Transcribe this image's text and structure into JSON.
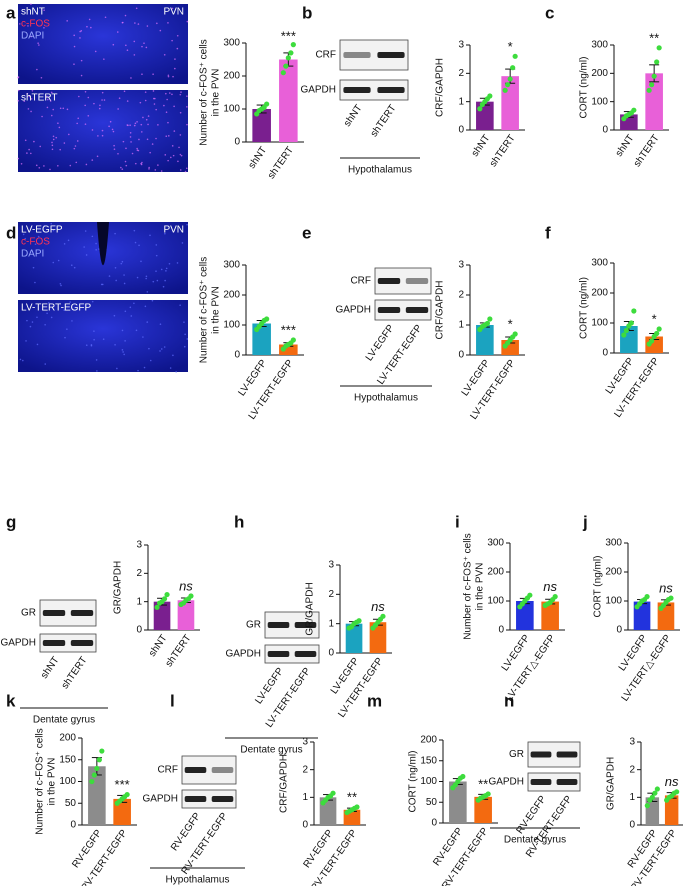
{
  "chart_data": [
    {
      "type": "bar",
      "panel": "a",
      "ylabel": [
        "Number of  c-FOS⁺ cells",
        "in the PVN"
      ],
      "categories": [
        "shNT",
        "shTERT"
      ],
      "values": [
        100,
        250
      ],
      "errors": [
        12,
        20
      ],
      "points": [
        [
          85,
          95,
          100,
          105,
          115
        ],
        [
          210,
          230,
          255,
          270,
          295
        ]
      ],
      "colors": [
        "#7a1f8f",
        "#e860d8"
      ],
      "ylim": [
        0,
        300
      ],
      "yticks": [
        0,
        100,
        200,
        300
      ],
      "annotation": "***"
    },
    {
      "type": "bar",
      "panel": "b",
      "ylabel": [
        "CRF/GAPDH"
      ],
      "categories": [
        "shNT",
        "shTERT"
      ],
      "values": [
        1,
        1.9
      ],
      "errors": [
        0.12,
        0.25
      ],
      "points": [
        [
          0.75,
          0.9,
          1.0,
          1.1,
          1.2
        ],
        [
          1.4,
          1.6,
          1.8,
          2.2,
          2.6
        ]
      ],
      "colors": [
        "#7a1f8f",
        "#e860d8"
      ],
      "ylim": [
        0,
        3
      ],
      "yticks": [
        0,
        1,
        2,
        3
      ],
      "annotation": "*"
    },
    {
      "type": "bar",
      "panel": "c",
      "ylabel": [
        "CORT (ng/ml)"
      ],
      "categories": [
        "shNT",
        "shTERT"
      ],
      "values": [
        55,
        200
      ],
      "errors": [
        10,
        30
      ],
      "points": [
        [
          40,
          50,
          55,
          60,
          70
        ],
        [
          140,
          160,
          190,
          240,
          290
        ]
      ],
      "colors": [
        "#7a1f8f",
        "#e860d8"
      ],
      "ylim": [
        0,
        300
      ],
      "yticks": [
        0,
        100,
        200,
        300
      ],
      "annotation": "**"
    },
    {
      "type": "bar",
      "panel": "d",
      "ylabel": [
        "Number of  c-FOS⁺ cells",
        "in the PVN"
      ],
      "categories": [
        "LV-EGFP",
        "LV-TERT-EGFP"
      ],
      "values": [
        105,
        35
      ],
      "errors": [
        10,
        6
      ],
      "points": [
        [
          85,
          95,
          105,
          115,
          120
        ],
        [
          20,
          30,
          35,
          40,
          50
        ]
      ],
      "colors": [
        "#1ba3c0",
        "#f36a10"
      ],
      "ylim": [
        0,
        300
      ],
      "yticks": [
        0,
        100,
        200,
        300
      ],
      "annotation": "***"
    },
    {
      "type": "bar",
      "panel": "e",
      "ylabel": [
        "CRF/GAPDH"
      ],
      "categories": [
        "LV-EGFP",
        "LV-TERT-EGFP"
      ],
      "values": [
        1,
        0.5
      ],
      "errors": [
        0.07,
        0.1
      ],
      "points": [
        [
          0.85,
          0.95,
          1.0,
          1.05,
          1.2
        ],
        [
          0.3,
          0.4,
          0.5,
          0.6,
          0.7
        ]
      ],
      "colors": [
        "#1ba3c0",
        "#f36a10"
      ],
      "ylim": [
        0,
        3
      ],
      "yticks": [
        0,
        1,
        2,
        3
      ],
      "annotation": "*"
    },
    {
      "type": "bar",
      "panel": "f",
      "ylabel": [
        "CORT (ng/ml)"
      ],
      "categories": [
        "LV-EGFP",
        "LV-TERT-EGFP"
      ],
      "values": [
        90,
        55
      ],
      "errors": [
        15,
        10
      ],
      "points": [
        [
          60,
          75,
          90,
          100,
          140
        ],
        [
          30,
          40,
          55,
          65,
          80
        ]
      ],
      "colors": [
        "#1ba3c0",
        "#f36a10"
      ],
      "ylim": [
        0,
        300
      ],
      "yticks": [
        0,
        100,
        200,
        300
      ],
      "annotation": "*"
    },
    {
      "type": "bar",
      "panel": "g",
      "ylabel": [
        "GR/GAPDH"
      ],
      "categories": [
        "shNT",
        "shTERT"
      ],
      "values": [
        1,
        1.05
      ],
      "errors": [
        0.12,
        0.08
      ],
      "points": [
        [
          0.8,
          0.95,
          1.0,
          1.1,
          1.25
        ],
        [
          0.9,
          0.95,
          1.05,
          1.1,
          1.2
        ]
      ],
      "colors": [
        "#7a1f8f",
        "#e860d8"
      ],
      "ylim": [
        0,
        3
      ],
      "yticks": [
        0,
        1,
        2,
        3
      ],
      "annotation": "ns"
    },
    {
      "type": "bar",
      "panel": "h",
      "ylabel": [
        "GR/GAPDH"
      ],
      "categories": [
        "LV-EGFP",
        "LV-TERT-EGFP"
      ],
      "values": [
        1,
        1.05
      ],
      "errors": [
        0.07,
        0.1
      ],
      "points": [
        [
          0.85,
          0.9,
          1.0,
          1.05,
          1.1
        ],
        [
          0.85,
          0.95,
          1.05,
          1.15,
          1.25
        ]
      ],
      "colors": [
        "#1ba3c0",
        "#f36a10"
      ],
      "ylim": [
        0,
        3
      ],
      "yticks": [
        0,
        1,
        2,
        3
      ],
      "annotation": "ns"
    },
    {
      "type": "bar",
      "panel": "i",
      "ylabel": [
        "Number of  c-FOS⁺ cells",
        "in the PVN"
      ],
      "categories": [
        "LV-EGFP",
        "LV-TERT△-EGFP"
      ],
      "values": [
        100,
        98
      ],
      "errors": [
        9,
        8
      ],
      "points": [
        [
          80,
          90,
          100,
          110,
          120
        ],
        [
          85,
          90,
          95,
          105,
          115
        ]
      ],
      "colors": [
        "#2233dd",
        "#f36a10"
      ],
      "ylim": [
        0,
        300
      ],
      "yticks": [
        0,
        100,
        200,
        300
      ],
      "annotation": "ns"
    },
    {
      "type": "bar",
      "panel": "j",
      "ylabel": [
        "CORT (ng/ml)"
      ],
      "categories": [
        "LV-EGFP",
        "LV-TERT△-EGFP"
      ],
      "values": [
        98,
        95
      ],
      "errors": [
        7,
        9
      ],
      "points": [
        [
          80,
          90,
          100,
          105,
          115
        ],
        [
          75,
          85,
          95,
          105,
          110
        ]
      ],
      "colors": [
        "#2233dd",
        "#f36a10"
      ],
      "ylim": [
        0,
        300
      ],
      "yticks": [
        0,
        100,
        200,
        300
      ],
      "annotation": "ns"
    },
    {
      "type": "bar",
      "panel": "k",
      "ylabel": [
        "Number of c-FOS⁺ cells",
        "in the PVN"
      ],
      "categories": [
        "RV-EGFP",
        "RV-TERT-EGFP"
      ],
      "values": [
        135,
        60
      ],
      "errors": [
        20,
        8
      ],
      "points": [
        [
          100,
          115,
          130,
          150,
          170
        ],
        [
          50,
          55,
          60,
          65,
          70
        ]
      ],
      "colors": [
        "#8c8c8c",
        "#f36a10"
      ],
      "ylim": [
        0,
        200
      ],
      "yticks": [
        0,
        50,
        100,
        150,
        200
      ],
      "annotation": "***"
    },
    {
      "type": "bar",
      "panel": "l",
      "ylabel": [
        "CRF/GAPDH"
      ],
      "categories": [
        "RV-EGFP",
        "RV-TERT-EGFP"
      ],
      "values": [
        1,
        0.55
      ],
      "errors": [
        0.1,
        0.06
      ],
      "points": [
        [
          0.8,
          0.9,
          1.0,
          1.05,
          1.15
        ],
        [
          0.45,
          0.5,
          0.55,
          0.6,
          0.65
        ]
      ],
      "colors": [
        "#8c8c8c",
        "#f36a10"
      ],
      "ylim": [
        0,
        3
      ],
      "yticks": [
        0,
        1,
        2,
        3
      ],
      "annotation": "**"
    },
    {
      "type": "bar",
      "panel": "m",
      "ylabel": [
        "CORT (ng/ml)"
      ],
      "categories": [
        "RV-EGFP",
        "RV-TERT-EGFP"
      ],
      "values": [
        100,
        63
      ],
      "errors": [
        7,
        6
      ],
      "points": [
        [
          85,
          92,
          100,
          108,
          112
        ],
        [
          55,
          60,
          63,
          66,
          70
        ]
      ],
      "colors": [
        "#8c8c8c",
        "#f36a10"
      ],
      "ylim": [
        0,
        200
      ],
      "yticks": [
        0,
        50,
        100,
        150,
        200
      ],
      "annotation": "**"
    },
    {
      "type": "bar",
      "panel": "n",
      "ylabel": [
        "GR/GAPDH"
      ],
      "categories": [
        "RV-EGFP",
        "RV-TERT-EGFP"
      ],
      "values": [
        1,
        1.07
      ],
      "errors": [
        0.15,
        0.1
      ],
      "points": [
        [
          0.7,
          0.9,
          1.0,
          1.15,
          1.3
        ],
        [
          0.9,
          1.0,
          1.05,
          1.15,
          1.2
        ]
      ],
      "colors": [
        "#8c8c8c",
        "#f36a10"
      ],
      "ylim": [
        0,
        3
      ],
      "yticks": [
        0,
        1,
        2,
        3
      ],
      "annotation": "ns"
    }
  ],
  "images": [
    {
      "title": "shNT",
      "stains": [
        "c-FOS",
        "DAPI"
      ],
      "region": "PVN"
    },
    {
      "title": "shTERT"
    },
    {
      "title": "LV-EGFP",
      "stains": [
        "c-FOS",
        "DAPI"
      ],
      "region": "PVN"
    },
    {
      "title": "LV-TERT-EGFP"
    }
  ],
  "blots": [
    {
      "rows": [
        "CRF",
        "GAPDH"
      ],
      "lanes": [
        "shNT",
        "shTERT"
      ],
      "caption": "Hypothalamus"
    },
    {
      "rows": [
        "CRF",
        "GAPDH"
      ],
      "lanes": [
        "LV-EGFP",
        "LV-TERT-EGFP"
      ],
      "caption": "Hypothalamus"
    },
    {
      "rows": [
        "GR",
        "GAPDH"
      ],
      "lanes": [
        "shNT",
        "shTERT"
      ],
      "caption": "Dentate gyrus"
    },
    {
      "rows": [
        "GR",
        "GAPDH"
      ],
      "lanes": [
        "LV-EGFP",
        "LV-TERT-EGFP"
      ],
      "caption": "Dentate gyrus"
    },
    {
      "rows": [
        "CRF",
        "GAPDH"
      ],
      "lanes": [
        "RV-EGFP",
        "RV-TERT-EGFP"
      ],
      "caption": "Hypothalamus"
    },
    {
      "rows": [
        "GR",
        "GAPDH"
      ],
      "lanes": [
        "RV-EGFP",
        "RV-TERT-EGFP"
      ],
      "caption": "Dentate gyrus"
    }
  ]
}
